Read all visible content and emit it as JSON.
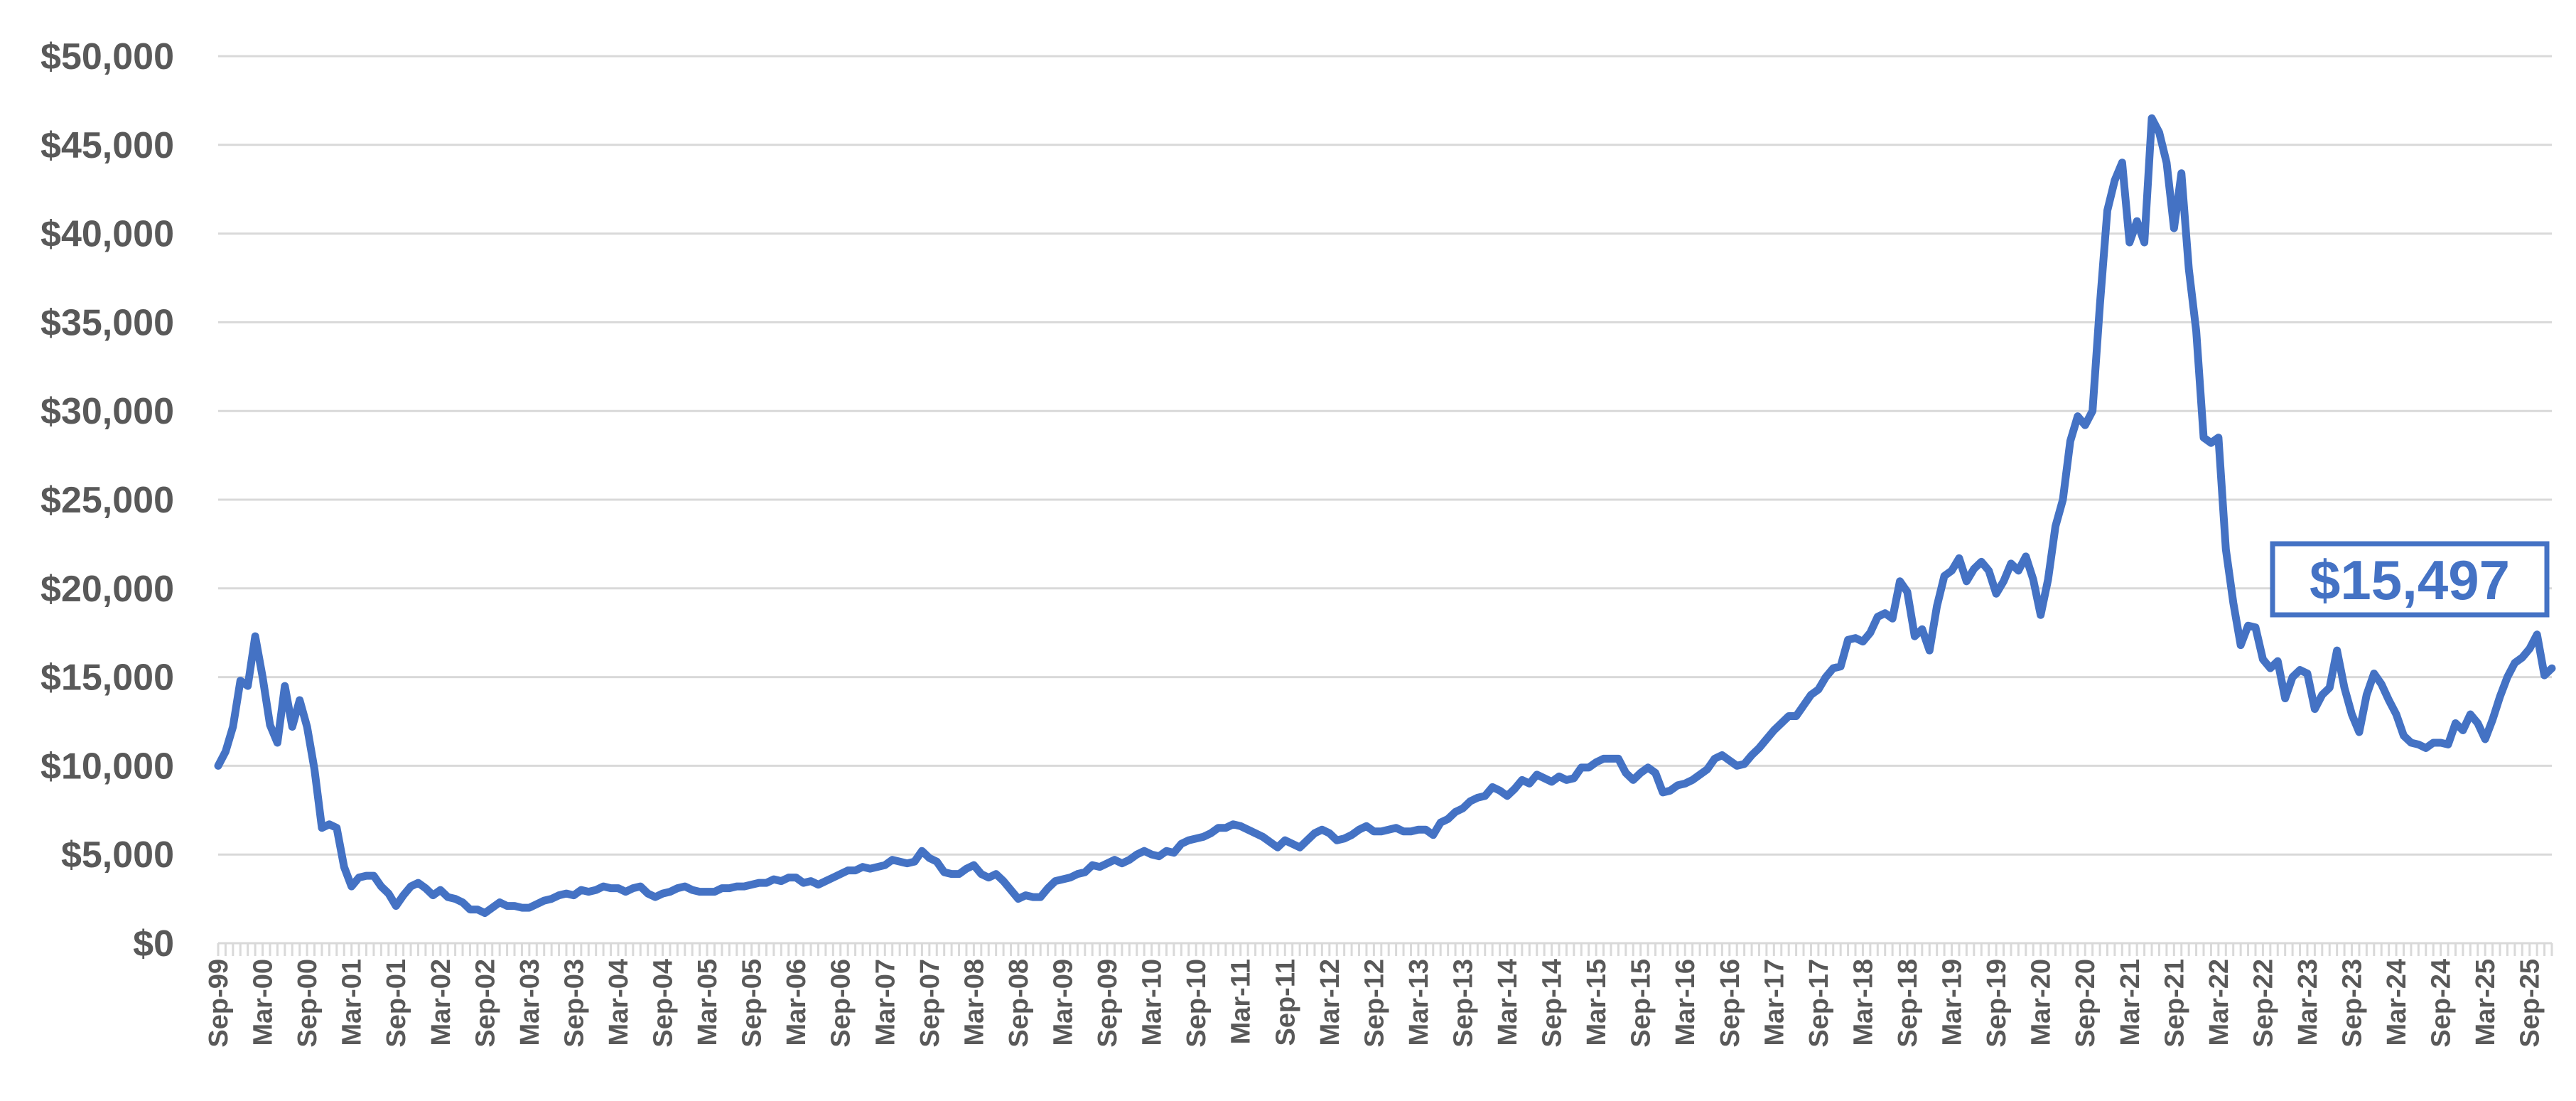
{
  "chart_data": {
    "type": "line",
    "categories": [
      "Sep-99",
      null,
      null,
      null,
      null,
      null,
      "Mar-00",
      null,
      null,
      null,
      null,
      null,
      "Sep-00",
      null,
      null,
      null,
      null,
      null,
      "Mar-01",
      null,
      null,
      null,
      null,
      null,
      "Sep-01",
      null,
      null,
      null,
      null,
      null,
      "Mar-02",
      null,
      null,
      null,
      null,
      null,
      "Sep-02",
      null,
      null,
      null,
      null,
      null,
      "Mar-03",
      null,
      null,
      null,
      null,
      null,
      "Sep-03",
      null,
      null,
      null,
      null,
      null,
      "Mar-04",
      null,
      null,
      null,
      null,
      null,
      "Sep-04",
      null,
      null,
      null,
      null,
      null,
      "Mar-05",
      null,
      null,
      null,
      null,
      null,
      "Sep-05",
      null,
      null,
      null,
      null,
      null,
      "Mar-06",
      null,
      null,
      null,
      null,
      null,
      "Sep-06",
      null,
      null,
      null,
      null,
      null,
      "Mar-07",
      null,
      null,
      null,
      null,
      null,
      "Sep-07",
      null,
      null,
      null,
      null,
      null,
      "Mar-08",
      null,
      null,
      null,
      null,
      null,
      "Sep-08",
      null,
      null,
      null,
      null,
      null,
      "Mar-09",
      null,
      null,
      null,
      null,
      null,
      "Sep-09",
      null,
      null,
      null,
      null,
      null,
      "Mar-10",
      null,
      null,
      null,
      null,
      null,
      "Sep-10",
      null,
      null,
      null,
      null,
      null,
      "Mar-11",
      null,
      null,
      null,
      null,
      null,
      "Sep-11",
      null,
      null,
      null,
      null,
      null,
      "Mar-12",
      null,
      null,
      null,
      null,
      null,
      "Sep-12",
      null,
      null,
      null,
      null,
      null,
      "Mar-13",
      null,
      null,
      null,
      null,
      null,
      "Sep-13",
      null,
      null,
      null,
      null,
      null,
      "Mar-14",
      null,
      null,
      null,
      null,
      null,
      "Sep-14",
      null,
      null,
      null,
      null,
      null,
      "Mar-15",
      null,
      null,
      null,
      null,
      null,
      "Sep-15",
      null,
      null,
      null,
      null,
      null,
      "Mar-16",
      null,
      null,
      null,
      null,
      null,
      "Sep-16",
      null,
      null,
      null,
      null,
      null,
      "Mar-17",
      null,
      null,
      null,
      null,
      null,
      "Sep-17",
      null,
      null,
      null,
      null,
      null,
      "Mar-18",
      null,
      null,
      null,
      null,
      null,
      "Sep-18",
      null,
      null,
      null,
      null,
      null,
      "Mar-19",
      null,
      null,
      null,
      null,
      null,
      "Sep-19",
      null,
      null,
      null,
      null,
      null,
      "Mar-20",
      null,
      null,
      null,
      null,
      null,
      "Sep-20",
      null,
      null,
      null,
      null,
      null,
      "Mar-21",
      null,
      null,
      null,
      null,
      null,
      "Sep-21",
      null,
      null,
      null,
      null,
      null,
      "Mar-22",
      null,
      null,
      null,
      null,
      null,
      "Sep-22",
      null,
      null,
      null,
      null,
      null,
      "Mar-23",
      null,
      null,
      null,
      null,
      null,
      "Sep-23",
      null,
      null,
      null,
      null,
      null,
      "Mar-24",
      null,
      null,
      null,
      null,
      null,
      "Sep-24",
      null,
      null,
      null,
      null,
      null,
      "Mar-25",
      null,
      null,
      null,
      null,
      null,
      "Sep-25",
      null,
      null,
      null
    ],
    "series": [
      {
        "color": "#4472c4",
        "values": [
          10000,
          10800,
          12200,
          14800,
          14500,
          17300,
          15000,
          12300,
          11300,
          14500,
          12200,
          13700,
          12200,
          9800,
          6500,
          6700,
          6500,
          4300,
          3200,
          3700,
          3800,
          3800,
          3200,
          2800,
          2100,
          2700,
          3200,
          3400,
          3100,
          2700,
          3000,
          2600,
          2500,
          2300,
          1900,
          1900,
          1700,
          2000,
          2300,
          2100,
          2100,
          2000,
          2000,
          2200,
          2400,
          2500,
          2700,
          2800,
          2700,
          3000,
          2900,
          3000,
          3200,
          3100,
          3100,
          2900,
          3100,
          3200,
          2800,
          2600,
          2800,
          2900,
          3100,
          3200,
          3000,
          2900,
          2900,
          2900,
          3100,
          3100,
          3200,
          3200,
          3300,
          3400,
          3400,
          3600,
          3500,
          3700,
          3700,
          3400,
          3500,
          3300,
          3500,
          3700,
          3900,
          4100,
          4100,
          4300,
          4200,
          4300,
          4400,
          4700,
          4600,
          4500,
          4600,
          5200,
          4800,
          4600,
          4000,
          3900,
          3900,
          4200,
          4400,
          3900,
          3700,
          3900,
          3500,
          3000,
          2500,
          2700,
          2600,
          2600,
          3100,
          3500,
          3600,
          3700,
          3900,
          4000,
          4400,
          4300,
          4500,
          4700,
          4500,
          4700,
          5000,
          5200,
          5000,
          4900,
          5200,
          5100,
          5600,
          5800,
          5900,
          6000,
          6200,
          6500,
          6500,
          6700,
          6600,
          6400,
          6200,
          6000,
          5700,
          5400,
          5800,
          5600,
          5400,
          5800,
          6200,
          6400,
          6200,
          5800,
          5900,
          6100,
          6400,
          6600,
          6300,
          6300,
          6400,
          6500,
          6300,
          6300,
          6400,
          6400,
          6100,
          6800,
          7000,
          7400,
          7600,
          8000,
          8200,
          8300,
          8800,
          8600,
          8300,
          8700,
          9200,
          9000,
          9500,
          9300,
          9100,
          9400,
          9200,
          9300,
          9900,
          9900,
          10200,
          10400,
          10400,
          10400,
          9600,
          9200,
          9600,
          9900,
          9600,
          8500,
          8600,
          8900,
          9000,
          9200,
          9500,
          9800,
          10400,
          10600,
          10300,
          10000,
          10100,
          10600,
          11000,
          11500,
          12000,
          12400,
          12800,
          12800,
          13400,
          14000,
          14300,
          15000,
          15500,
          15600,
          17100,
          17200,
          17000,
          17500,
          18400,
          18600,
          18300,
          20400,
          19800,
          17300,
          17700,
          16500,
          19000,
          20700,
          21000,
          21700,
          20400,
          21100,
          21500,
          21000,
          19700,
          20400,
          21400,
          21000,
          21800,
          20500,
          18500,
          20500,
          23500,
          25000,
          28300,
          29700,
          29200,
          30000,
          36000,
          41300,
          43000,
          44000,
          39500,
          40700,
          39500,
          46500,
          45700,
          44000,
          40300,
          43400,
          38000,
          34500,
          28500,
          28200,
          28500,
          22200,
          19200,
          16800,
          17900,
          17800,
          16000,
          15500,
          15900,
          13800,
          15000,
          15400,
          15200,
          13200,
          14000,
          14400,
          16500,
          14400,
          12900,
          11900,
          14000,
          15200,
          14600,
          13700,
          12900,
          11700,
          11300,
          11200,
          11000,
          11300,
          11300,
          11200,
          12400,
          12000,
          12900,
          12400,
          11500,
          12600,
          13900,
          15000,
          15800,
          16100,
          16600,
          17400,
          15100,
          15497
        ],
        "value_labels": [
          null,
          null,
          null,
          null,
          null,
          null,
          null,
          null,
          null,
          null,
          null,
          null,
          null,
          null,
          null,
          null,
          null,
          null,
          null,
          null,
          null,
          null,
          null,
          null,
          null,
          null,
          null,
          null,
          null,
          null,
          null,
          null,
          null,
          null,
          null,
          null,
          null,
          null,
          null,
          null,
          null,
          null,
          null,
          null,
          null,
          null,
          null,
          null,
          null,
          null,
          null,
          null,
          null,
          null,
          null,
          null,
          null,
          null,
          null,
          null,
          null,
          null,
          null,
          null,
          null,
          null,
          null,
          null,
          null,
          null,
          null,
          null,
          null,
          null,
          null,
          null,
          null,
          null,
          null,
          null,
          null,
          null,
          null,
          null,
          null,
          null,
          null,
          null,
          null,
          null,
          null,
          null,
          null,
          null,
          null,
          null,
          null,
          null,
          null,
          null,
          null,
          null,
          null,
          null,
          null,
          null,
          null,
          null,
          null,
          null,
          null,
          null,
          null,
          null,
          null,
          null,
          null,
          null,
          null,
          null,
          null,
          null,
          null,
          null,
          null,
          null,
          null,
          null,
          null,
          null,
          null,
          null,
          null,
          null,
          null,
          null,
          null,
          null,
          null,
          null,
          null,
          null,
          null,
          null,
          null,
          null,
          null,
          null,
          null,
          null,
          null,
          null,
          null,
          null,
          null,
          null,
          null,
          null,
          null,
          null,
          null,
          null,
          null,
          null,
          null,
          null,
          null,
          null,
          null,
          null,
          null,
          null,
          null,
          null,
          null,
          null,
          null,
          null,
          null,
          null,
          null,
          null,
          null,
          null,
          null,
          null,
          null,
          null,
          null,
          null,
          null,
          null,
          null,
          null,
          null,
          null,
          null,
          null,
          null,
          null,
          null,
          null,
          null,
          null,
          null,
          null,
          null,
          null,
          null,
          null,
          null,
          null,
          null,
          null,
          null,
          null,
          null,
          null,
          null,
          null,
          null,
          null,
          null,
          null,
          null,
          null,
          null,
          null,
          null,
          null,
          null,
          null,
          null,
          null,
          null,
          null,
          null,
          null,
          null,
          null,
          null,
          null,
          null,
          null,
          null,
          null,
          null,
          null,
          null,
          null,
          null,
          null,
          null,
          null,
          null,
          null,
          null,
          null,
          null,
          null,
          null,
          null,
          null,
          null,
          null,
          null,
          null,
          null,
          null,
          null,
          null,
          null,
          null,
          null,
          null,
          null,
          null,
          null,
          null,
          null,
          null,
          null,
          null,
          null,
          null,
          null,
          null,
          null,
          null,
          null,
          null,
          null,
          null,
          null,
          null,
          null,
          null,
          null,
          null,
          null,
          null,
          null,
          null,
          null,
          null,
          null,
          null,
          null,
          null,
          null,
          null,
          null,
          null,
          null,
          null,
          "$15,497"
        ]
      }
    ],
    "ylim": [
      0,
      50000
    ],
    "yticks": [
      {
        "value": 0,
        "label": "$0"
      },
      {
        "value": 5000,
        "label": "$5,000"
      },
      {
        "value": 10000,
        "label": "$10,000"
      },
      {
        "value": 15000,
        "label": "$15,000"
      },
      {
        "value": 20000,
        "label": "$20,000"
      },
      {
        "value": 25000,
        "label": "$25,000"
      },
      {
        "value": 30000,
        "label": "$30,000"
      },
      {
        "value": 35000,
        "label": "$35,000"
      },
      {
        "value": 40000,
        "label": "$40,000"
      },
      {
        "value": 45000,
        "label": "$45,000"
      },
      {
        "value": 50000,
        "label": "$50,000"
      }
    ],
    "grid": true
  }
}
